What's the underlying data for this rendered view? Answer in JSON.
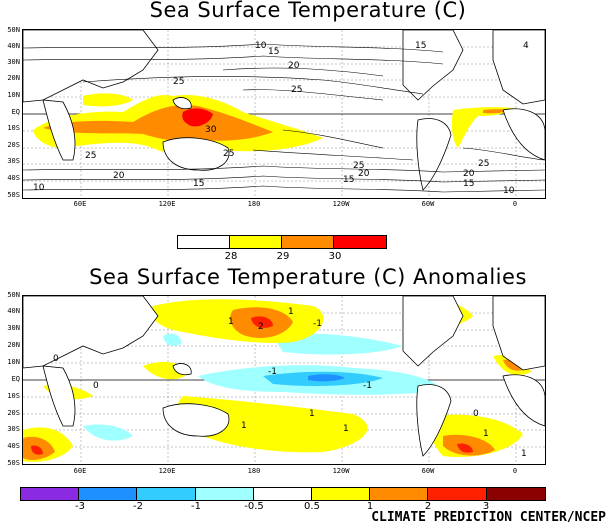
{
  "panel1": {
    "title": "Sea Surface Temperature (C)",
    "lat_labels": [
      "50N",
      "40N",
      "30N",
      "20N",
      "10N",
      "EQ",
      "10S",
      "20S",
      "30S",
      "40S",
      "50S"
    ],
    "lon_labels": [
      "60E",
      "120E",
      "180",
      "120W",
      "60W",
      "0"
    ],
    "contour_labels": [
      "10",
      "15",
      "20",
      "25",
      "25",
      "30",
      "25",
      "25",
      "20",
      "15",
      "10",
      "15",
      "20",
      "25",
      "15",
      "20",
      "25",
      "15",
      "10",
      "4"
    ],
    "colorbar": {
      "colors": [
        "#ffffff",
        "#ffff00",
        "#ff8c00",
        "#ff0000"
      ],
      "tick_labels": [
        "28",
        "29",
        "30"
      ]
    }
  },
  "panel2": {
    "title": "Sea Surface Temperature (C) Anomalies",
    "lat_labels": [
      "50N",
      "40N",
      "30N",
      "20N",
      "10N",
      "EQ",
      "10S",
      "20S",
      "30S",
      "40S",
      "50S"
    ],
    "lon_labels": [
      "60E",
      "120E",
      "180",
      "120W",
      "60W",
      "0"
    ],
    "contour_labels": [
      "1",
      "2",
      "1",
      "-1",
      "0",
      "0",
      "-1",
      "-1",
      "1",
      "1",
      "1",
      "0",
      "1",
      "1"
    ],
    "colorbar": {
      "colors": [
        "#8a2be2",
        "#1e90ff",
        "#33ccff",
        "#a0ffff",
        "#ffffff",
        "#ffff00",
        "#ff8c00",
        "#ff2000",
        "#8b0000"
      ],
      "tick_labels": [
        "-3",
        "-2",
        "-1",
        "-0.5",
        "0.5",
        "1",
        "2",
        "3"
      ]
    }
  },
  "credit": "CLIMATE PREDICTION CENTER/NCEP"
}
